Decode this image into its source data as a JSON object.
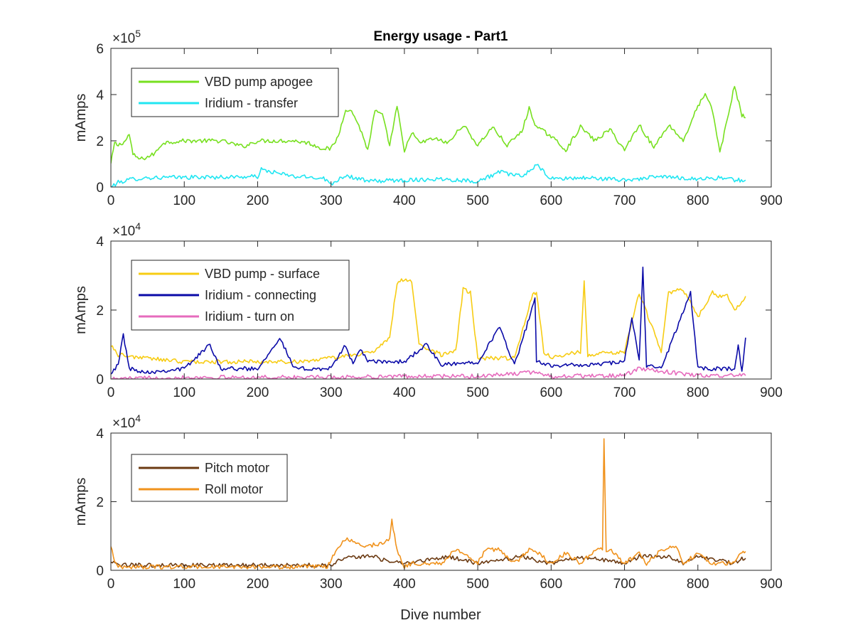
{
  "figure": {
    "title": "Energy usage - Part1",
    "xlabel": "Dive number"
  },
  "chart_data": [
    {
      "type": "line",
      "title": "Energy usage - Part1",
      "xlabel": "",
      "ylabel": "mAmps",
      "xlim": [
        0,
        900
      ],
      "ylim": [
        0,
        600000
      ],
      "x_ticks": [
        0,
        100,
        200,
        300,
        400,
        500,
        600,
        700,
        800,
        900
      ],
      "y_ticks": [
        0,
        200000,
        400000,
        600000
      ],
      "y_tick_labels": [
        "0",
        "2",
        "4",
        "6"
      ],
      "y_exponent": "5",
      "legend_position": "top-left",
      "grid": false,
      "series": [
        {
          "name": "VBD pump apogee",
          "color": "#77e01f",
          "x": [
            0,
            5,
            10,
            20,
            25,
            30,
            40,
            50,
            60,
            70,
            80,
            100,
            150,
            180,
            200,
            250,
            270,
            285,
            300,
            310,
            320,
            330,
            340,
            350,
            360,
            370,
            380,
            390,
            400,
            410,
            420,
            440,
            460,
            480,
            500,
            520,
            540,
            560,
            570,
            580,
            600,
            620,
            640,
            660,
            680,
            700,
            720,
            740,
            760,
            780,
            800,
            810,
            820,
            830,
            840,
            850,
            860,
            865
          ],
          "values": [
            100000,
            190000,
            180000,
            200000,
            230000,
            140000,
            120000,
            130000,
            145000,
            190000,
            195000,
            200000,
            200000,
            175000,
            200000,
            200000,
            190000,
            170000,
            165000,
            220000,
            340000,
            320000,
            250000,
            160000,
            330000,
            310000,
            180000,
            350000,
            150000,
            240000,
            190000,
            210000,
            190000,
            270000,
            180000,
            260000,
            180000,
            240000,
            340000,
            260000,
            220000,
            160000,
            260000,
            200000,
            250000,
            160000,
            270000,
            170000,
            270000,
            200000,
            350000,
            400000,
            330000,
            150000,
            290000,
            440000,
            310000,
            300000
          ]
        },
        {
          "name": "Iridium - transfer",
          "color": "#20e6f2",
          "x": [
            0,
            10,
            30,
            50,
            100,
            150,
            200,
            205,
            250,
            290,
            300,
            310,
            320,
            350,
            400,
            450,
            500,
            530,
            560,
            580,
            600,
            650,
            700,
            750,
            800,
            830,
            850,
            865
          ],
          "values": [
            0,
            20000,
            35000,
            40000,
            42000,
            43000,
            45000,
            75000,
            45000,
            40000,
            10000,
            35000,
            50000,
            25000,
            30000,
            35000,
            25000,
            65000,
            45000,
            95000,
            35000,
            40000,
            30000,
            45000,
            35000,
            40000,
            30000,
            30000
          ]
        }
      ]
    },
    {
      "type": "line",
      "title": "",
      "xlabel": "",
      "ylabel": "mAmps",
      "xlim": [
        0,
        900
      ],
      "ylim": [
        0,
        40000
      ],
      "x_ticks": [
        0,
        100,
        200,
        300,
        400,
        500,
        600,
        700,
        800,
        900
      ],
      "y_ticks": [
        0,
        20000,
        40000
      ],
      "y_tick_labels": [
        "0",
        "2",
        "4"
      ],
      "y_exponent": "4",
      "legend_position": "top-left",
      "grid": false,
      "series": [
        {
          "name": "VBD pump - surface",
          "color": "#f7cc13",
          "x": [
            0,
            10,
            50,
            100,
            150,
            200,
            250,
            300,
            330,
            360,
            380,
            390,
            400,
            410,
            420,
            450,
            470,
            480,
            490,
            500,
            550,
            575,
            580,
            590,
            600,
            640,
            645,
            650,
            700,
            720,
            750,
            760,
            780,
            800,
            820,
            830,
            840,
            850,
            860,
            865
          ],
          "values": [
            10000,
            7000,
            6000,
            5000,
            5000,
            5000,
            5000,
            6000,
            7000,
            8000,
            12000,
            28000,
            29000,
            28000,
            10000,
            7000,
            8000,
            26000,
            25000,
            6000,
            6000,
            25000,
            25000,
            8000,
            6000,
            8000,
            28000,
            7000,
            8000,
            25000,
            8000,
            25000,
            26000,
            18000,
            25000,
            24000,
            24000,
            20000,
            22000,
            24000
          ]
        },
        {
          "name": "Iridium - connecting",
          "color": "#0a0aa8",
          "x": [
            0,
            10,
            17,
            25,
            50,
            100,
            135,
            150,
            200,
            230,
            250,
            300,
            320,
            330,
            340,
            350,
            400,
            430,
            450,
            500,
            530,
            550,
            578,
            580,
            600,
            650,
            700,
            710,
            720,
            725,
            730,
            750,
            790,
            800,
            850,
            855,
            860,
            865
          ],
          "values": [
            2000,
            4000,
            13000,
            3000,
            2000,
            3000,
            10000,
            3000,
            3000,
            12000,
            3000,
            3000,
            10000,
            4000,
            9000,
            5000,
            5000,
            10000,
            4000,
            5000,
            15000,
            4000,
            23000,
            5000,
            4000,
            4000,
            5000,
            18000,
            5000,
            32000,
            4000,
            3000,
            25000,
            3000,
            3000,
            10000,
            2000,
            12000
          ]
        },
        {
          "name": "Iridium - turn on",
          "color": "#e66bbd",
          "x": [
            0,
            100,
            200,
            300,
            400,
            500,
            580,
            600,
            700,
            720,
            800,
            865
          ],
          "values": [
            0,
            500,
            500,
            500,
            800,
            800,
            2000,
            800,
            1000,
            3000,
            1000,
            1000
          ]
        }
      ]
    },
    {
      "type": "line",
      "title": "",
      "xlabel": "Dive number",
      "ylabel": "mAmps",
      "xlim": [
        0,
        900
      ],
      "ylim": [
        0,
        40000
      ],
      "x_ticks": [
        0,
        100,
        200,
        300,
        400,
        500,
        600,
        700,
        800,
        900
      ],
      "y_ticks": [
        0,
        20000,
        40000
      ],
      "y_tick_labels": [
        "0",
        "2",
        "4"
      ],
      "y_exponent": "4",
      "legend_position": "top-left",
      "grid": false,
      "series": [
        {
          "name": "Pitch motor",
          "color": "#6b3a12",
          "x": [
            0,
            10,
            50,
            100,
            150,
            200,
            250,
            290,
            300,
            320,
            360,
            370,
            400,
            460,
            500,
            560,
            600,
            620,
            660,
            700,
            720,
            760,
            780,
            800,
            850,
            860,
            865
          ],
          "values": [
            2500,
            1500,
            1500,
            1500,
            1500,
            1500,
            1500,
            1500,
            1500,
            4000,
            4000,
            3000,
            2000,
            4000,
            2000,
            4000,
            2000,
            3500,
            3500,
            2000,
            4000,
            4000,
            2000,
            4000,
            2000,
            3500,
            3500
          ]
        },
        {
          "name": "Roll motor",
          "color": "#f0921c",
          "x": [
            0,
            5,
            10,
            50,
            100,
            150,
            200,
            250,
            295,
            310,
            320,
            350,
            370,
            380,
            383,
            390,
            400,
            410,
            450,
            470,
            490,
            500,
            510,
            530,
            550,
            570,
            580,
            600,
            620,
            640,
            660,
            670,
            672,
            675,
            680,
            700,
            720,
            730,
            750,
            770,
            780,
            800,
            820,
            850,
            860,
            865
          ],
          "values": [
            7000,
            3000,
            1000,
            1000,
            1000,
            1000,
            1000,
            1000,
            1000,
            7000,
            9000,
            7000,
            8000,
            9000,
            14500,
            6000,
            1000,
            2000,
            2000,
            6000,
            4000,
            2000,
            6000,
            6000,
            2000,
            6000,
            5500,
            2000,
            5000,
            2000,
            6000,
            6000,
            38000,
            6000,
            6000,
            2000,
            5000,
            2000,
            6000,
            7000,
            2000,
            5000,
            2000,
            2000,
            5500,
            5500
          ]
        }
      ]
    }
  ]
}
